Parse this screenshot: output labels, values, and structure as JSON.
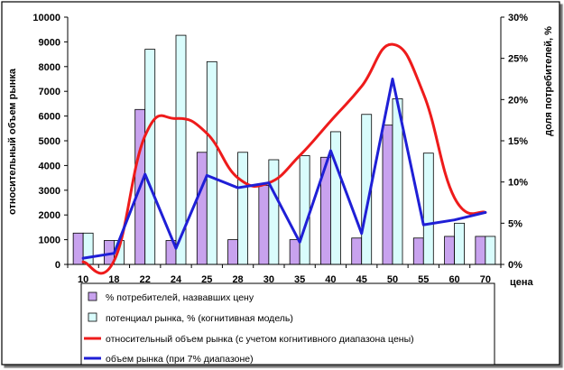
{
  "chart_data": {
    "type": "bar",
    "categories": [
      "10",
      "18",
      "22",
      "24",
      "25",
      "28",
      "30",
      "35",
      "40",
      "45",
      "50",
      "55",
      "60",
      "70"
    ],
    "xlabel": "цена",
    "ylabel": "относительный объем рынка",
    "y2label": "доля потребителей, %",
    "ylim": [
      0,
      10000
    ],
    "yticks": [
      0,
      1000,
      2000,
      3000,
      4000,
      5000,
      6000,
      7000,
      8000,
      9000,
      10000
    ],
    "y2lim": [
      0,
      30
    ],
    "y2ticks": [
      0,
      5,
      10,
      15,
      20,
      25,
      30
    ],
    "y2tick_labels": [
      "0%",
      "5%",
      "10%",
      "15%",
      "20%",
      "25%",
      "30%"
    ],
    "grid": false,
    "legend_position": "bottom",
    "colors": {
      "bar1_fill": "#c8a2ee",
      "bar2_fill": "#d9fcfc",
      "bar_stroke": "#000000",
      "red_line": "#ee1b1b",
      "blue_line": "#1f1fd6",
      "axis": "#000000"
    },
    "series": [
      {
        "name": "% потребителей, назвавших цену",
        "kind": "bar",
        "axis": "right",
        "values": [
          3.8,
          2.9,
          18.8,
          2.9,
          13.6,
          3.0,
          9.6,
          3.0,
          13.0,
          3.2,
          16.9,
          3.2,
          3.4,
          3.4
        ]
      },
      {
        "name": "потенциал рынка, % (когнитивная модель)",
        "kind": "bar",
        "axis": "right",
        "values": [
          3.8,
          2.9,
          26.1,
          27.8,
          24.6,
          13.6,
          12.7,
          13.2,
          16.1,
          18.2,
          20.1,
          13.5,
          5.0,
          3.4
        ]
      },
      {
        "name": "относительный объем рынка (с учетом когнитивного диапазона цены)",
        "kind": "line",
        "axis": "left",
        "smooth": true,
        "values": [
          100,
          150,
          5200,
          5900,
          5300,
          3500,
          3300,
          4400,
          5800,
          7200,
          8900,
          6900,
          2700,
          2100
        ]
      },
      {
        "name": "объем рынка (при 7% диапазоне)",
        "kind": "line",
        "axis": "left",
        "smooth": false,
        "values": [
          250,
          450,
          3650,
          650,
          3600,
          3100,
          3300,
          900,
          4600,
          1250,
          7500,
          1600,
          1800,
          2100
        ]
      }
    ]
  }
}
